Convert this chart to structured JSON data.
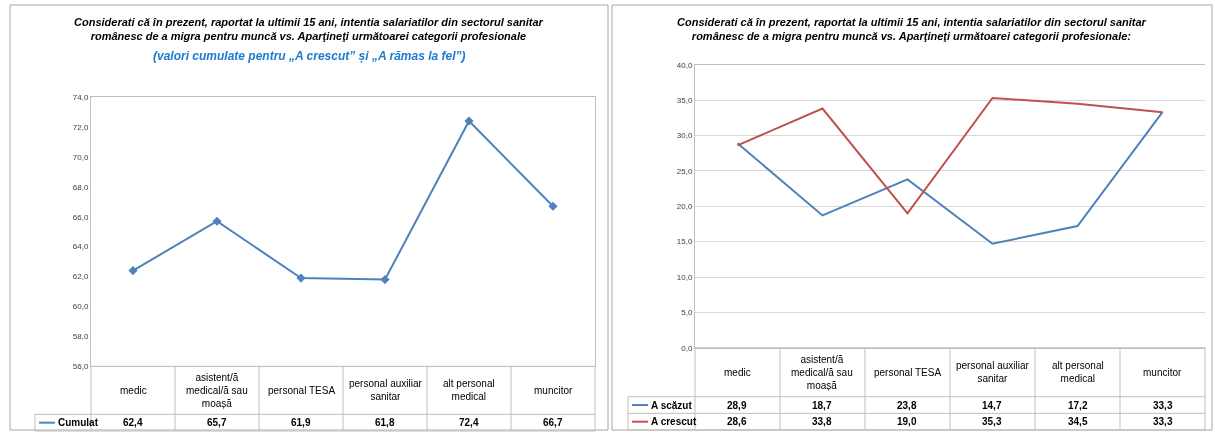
{
  "chart_data": [
    {
      "type": "line",
      "title": "Considerati că în prezent, raportat la ultimii 15 ani, intentia salariatilor din sectorul sanitar românesc de a migra pentru muncă vs. Aparţineţi următoarei categorii profesionale",
      "subtitle": "(valori cumulate pentru „A crescut” și „A rămas la fel”)",
      "categories": [
        "medic",
        "asistent/ă medical/ă sau moașă",
        "personal TESA",
        "personal auxiliar sanitar",
        "alt personal medical",
        "muncitor"
      ],
      "series": [
        {
          "name": "Cumulat",
          "color": "#4f81bd",
          "values": [
            62.4,
            65.7,
            61.9,
            61.8,
            72.4,
            66.7
          ],
          "value_labels": [
            "62,4",
            "65,7",
            "61,9",
            "61,8",
            "72,4",
            "66,7"
          ]
        }
      ],
      "ylim": [
        56,
        74
      ],
      "yticks": [
        {
          "value": 56,
          "label": "56,0"
        },
        {
          "value": 58,
          "label": "58,0"
        },
        {
          "value": 60,
          "label": "60,0"
        },
        {
          "value": 62,
          "label": "62,0"
        },
        {
          "value": 64,
          "label": "64,0"
        },
        {
          "value": 66,
          "label": "66,0"
        },
        {
          "value": 68,
          "label": "68,0"
        },
        {
          "value": 70,
          "label": "70,0"
        },
        {
          "value": 72,
          "label": "72,0"
        },
        {
          "value": 74,
          "label": "74,0"
        }
      ],
      "grid": false,
      "marker": "diamond",
      "legend": "bottom"
    },
    {
      "type": "line",
      "title": "Considerati că în prezent, raportat la ultimii 15 ani, intentia salariatilor din sectorul sanitar românesc de a migra pentru muncă vs. Aparţineţi următoarei categorii profesionale:",
      "categories": [
        "medic",
        "asistent/ă medical/ă sau moașă",
        "personal TESA",
        "personal auxiliar sanitar",
        "alt personal medical",
        "muncitor"
      ],
      "series": [
        {
          "name": "A scăzut",
          "color": "#4f81bd",
          "values": [
            28.9,
            18.7,
            23.8,
            14.7,
            17.2,
            33.3
          ],
          "value_labels": [
            "28,9",
            "18,7",
            "23,8",
            "14,7",
            "17,2",
            "33,3"
          ]
        },
        {
          "name": "A crescut",
          "color": "#c0504d",
          "values": [
            28.6,
            33.8,
            19.0,
            35.3,
            34.5,
            33.3
          ],
          "value_labels": [
            "28,6",
            "33,8",
            "19,0",
            "35,3",
            "34,5",
            "33,3"
          ]
        }
      ],
      "ylim": [
        0,
        40
      ],
      "yticks": [
        {
          "value": 0,
          "label": "0,0"
        },
        {
          "value": 5,
          "label": "5,0"
        },
        {
          "value": 10,
          "label": "10,0"
        },
        {
          "value": 15,
          "label": "15,0"
        },
        {
          "value": 20,
          "label": "20,0"
        },
        {
          "value": 25,
          "label": "25,0"
        },
        {
          "value": 30,
          "label": "30,0"
        },
        {
          "value": 35,
          "label": "35,0"
        },
        {
          "value": 40,
          "label": "40,0"
        }
      ],
      "grid": "y",
      "legend": "bottom"
    }
  ]
}
